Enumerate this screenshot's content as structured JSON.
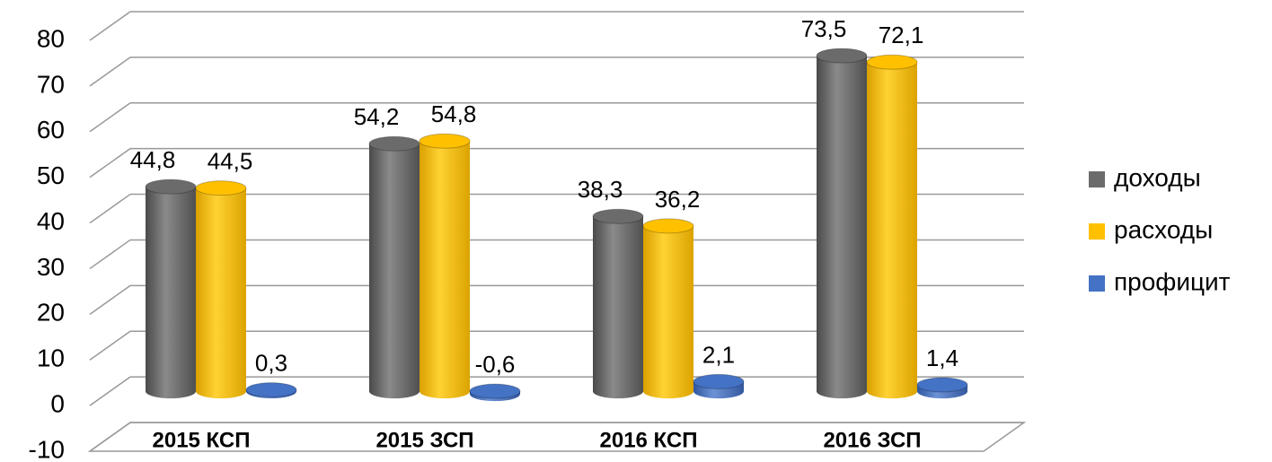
{
  "chart_data": {
    "type": "bar3d",
    "categories": [
      "2015 КСП",
      "2015 ЗСП",
      "2016 КСП",
      "2016 ЗСП"
    ],
    "series": [
      {
        "name": "доходы",
        "color": "#6b6b6b",
        "values": [
          44.8,
          54.2,
          38.3,
          73.5
        ],
        "value_labels": [
          "44,8",
          "54,2",
          "38,3",
          "73,5"
        ]
      },
      {
        "name": "расходы",
        "color": "#ffc000",
        "values": [
          44.5,
          54.8,
          36.2,
          72.1
        ],
        "value_labels": [
          "44,5",
          "54,8",
          "36,2",
          "72,1"
        ]
      },
      {
        "name": "профицит",
        "color": "#4472c4",
        "values": [
          0.3,
          -0.6,
          2.1,
          1.4
        ],
        "value_labels": [
          "0,3",
          "-0,6",
          "2,1",
          "1,4"
        ]
      }
    ],
    "ylim": [
      -10,
      80
    ],
    "yticks": [
      -10,
      0,
      10,
      20,
      30,
      40,
      50,
      60,
      70,
      80
    ],
    "grid": true,
    "legend": "right"
  }
}
